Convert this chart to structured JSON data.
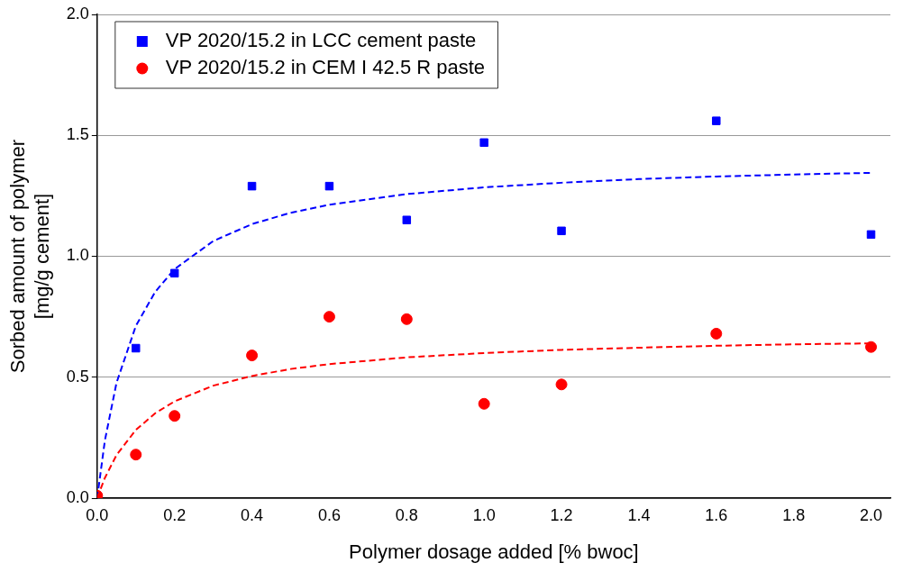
{
  "chart_data": {
    "type": "scatter",
    "xlabel": "Polymer dosage added [% bwoc]",
    "ylabel": "Sorbed amount of polymer\n[mg/g cement]",
    "xlim": [
      0,
      2.05
    ],
    "xticks": [
      {
        "value": 0,
        "label": "0.0"
      },
      {
        "value": 0.2,
        "label": "0.2"
      },
      {
        "value": 0.4,
        "label": "0.4"
      },
      {
        "value": 0.6,
        "label": "0.6"
      },
      {
        "value": 0.8,
        "label": "0.8"
      },
      {
        "value": 1.0,
        "label": "1.0"
      },
      {
        "value": 1.2,
        "label": "1.2"
      },
      {
        "value": 1.4,
        "label": "1.4"
      },
      {
        "value": 1.6,
        "label": "1.6"
      },
      {
        "value": 1.8,
        "label": "1.8"
      },
      {
        "value": 2.0,
        "label": "2.0"
      }
    ],
    "ylim": [
      0,
      2.0
    ],
    "yticks": [
      {
        "value": 0,
        "label": "0.0"
      },
      {
        "value": 0.5,
        "label": "0.5"
      },
      {
        "value": 1.0,
        "label": "1.0"
      },
      {
        "value": 1.5,
        "label": "1.5"
      },
      {
        "value": 2.0,
        "label": "2.0"
      }
    ],
    "grid": "y",
    "legend": "top left",
    "series": [
      {
        "name": "VP 2020/15.2 in LCC cement paste",
        "type": "scatter",
        "marker": "square",
        "color": "#0000ff",
        "x": [
          0.1,
          0.2,
          0.4,
          0.6,
          0.8,
          1.0,
          1.2,
          1.6,
          2.0
        ],
        "values": [
          0.62,
          0.93,
          1.29,
          1.29,
          1.15,
          1.47,
          1.105,
          1.56,
          1.09
        ]
      },
      {
        "name": "VP 2020/15.2 in CEM I 42.5 R paste",
        "type": "scatter",
        "marker": "circle",
        "color": "#ff0000",
        "x": [
          0,
          0.1,
          0.2,
          0.4,
          0.6,
          0.8,
          1.0,
          1.2,
          1.6,
          2.0
        ],
        "values": [
          0.01,
          0.18,
          0.34,
          0.59,
          0.75,
          0.74,
          0.39,
          0.47,
          0.68,
          0.625
        ]
      },
      {
        "type": "line",
        "line_style": "dashed",
        "marker": "none",
        "color": "#0000ff",
        "x": [
          0,
          0.02,
          0.05,
          0.1,
          0.15,
          0.2,
          0.3,
          0.4,
          0.5,
          0.6,
          0.8,
          1.0,
          1.2,
          1.4,
          1.6,
          1.8,
          2.0
        ],
        "values": [
          0,
          0.239,
          0.477,
          0.712,
          0.853,
          0.947,
          1.063,
          1.133,
          1.18,
          1.213,
          1.257,
          1.285,
          1.304,
          1.319,
          1.33,
          1.338,
          1.345
        ]
      },
      {
        "type": "line",
        "line_style": "dashed",
        "marker": "none",
        "color": "#ff0000",
        "x": [
          0,
          0.02,
          0.05,
          0.1,
          0.15,
          0.2,
          0.3,
          0.4,
          0.5,
          0.6,
          0.8,
          1.0,
          1.2,
          1.4,
          1.6,
          1.8,
          2.0
        ],
        "values": [
          0,
          0.084,
          0.178,
          0.282,
          0.351,
          0.4,
          0.465,
          0.505,
          0.534,
          0.554,
          0.582,
          0.6,
          0.613,
          0.622,
          0.63,
          0.636,
          0.64
        ]
      }
    ]
  }
}
